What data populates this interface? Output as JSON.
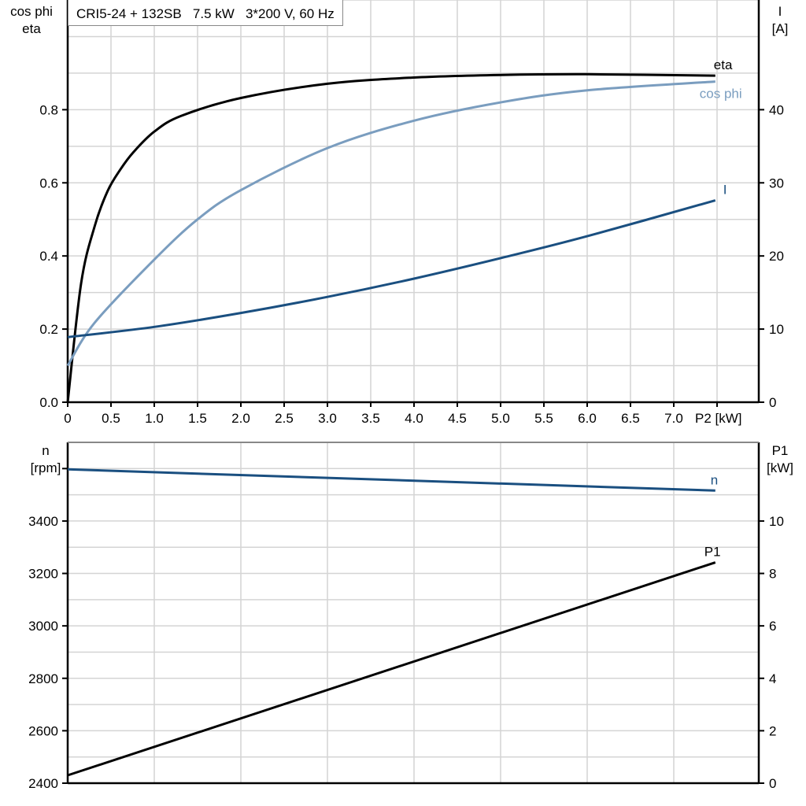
{
  "title": "CRI5-24 + 132SB   7.5 kW   3*200 V, 60 Hz",
  "chart_data": [
    {
      "type": "line",
      "xlabel": "P2 [kW]",
      "x_ticks": [
        "0",
        "0.5",
        "1.0",
        "1.5",
        "2.0",
        "2.5",
        "3.0",
        "3.5",
        "4.0",
        "4.5",
        "5.0",
        "5.5",
        "6.0",
        "6.5",
        "7.0"
      ],
      "xlim": [
        0,
        8
      ],
      "ylabel_left": [
        "cos phi",
        "eta"
      ],
      "ylim_left": [
        0,
        1.1
      ],
      "y_ticks_left": [
        "0.0",
        "0.2",
        "0.4",
        "0.6",
        "0.8"
      ],
      "ylabel_right": [
        "I",
        "[A]"
      ],
      "ylim_right": [
        0,
        55
      ],
      "y_ticks_right": [
        "0",
        "10",
        "20",
        "30",
        "40"
      ],
      "grid": true,
      "series": [
        {
          "name": "eta",
          "axis": "left",
          "color": "#000000",
          "x": [
            0,
            0.155,
            0.31,
            0.46,
            0.61,
            0.76,
            1.0,
            1.31,
            2.0,
            3.0,
            4.0,
            5.0,
            6.0,
            7.48
          ],
          "y": [
            0,
            0.325,
            0.48,
            0.577,
            0.637,
            0.684,
            0.74,
            0.783,
            0.832,
            0.871,
            0.888,
            0.895,
            0.897,
            0.893
          ]
        },
        {
          "name": "cos phi",
          "axis": "left",
          "color": "#7a9dbf",
          "x": [
            0,
            0.31,
            1.0,
            1.5,
            2.0,
            3.0,
            4.0,
            5.0,
            6.0,
            7.48
          ],
          "y": [
            0.1,
            0.217,
            0.39,
            0.5,
            0.58,
            0.695,
            0.77,
            0.82,
            0.853,
            0.877
          ]
        },
        {
          "name": "I",
          "axis": "right",
          "color": "#1a4f80",
          "x": [
            0,
            1,
            2,
            3,
            4,
            5,
            6,
            7.48
          ],
          "y": [
            8.9,
            10.3,
            12.2,
            14.4,
            16.9,
            19.7,
            22.7,
            27.6
          ]
        }
      ]
    },
    {
      "type": "line",
      "xlim": [
        0,
        8
      ],
      "ylabel_left": [
        "n",
        "[rpm]"
      ],
      "ylim_left": [
        2400,
        3700
      ],
      "y_ticks_left": [
        "2400",
        "2600",
        "2800",
        "3000",
        "3200",
        "3400"
      ],
      "ylabel_right": [
        "P1",
        "[kW]"
      ],
      "ylim_right": [
        0,
        13
      ],
      "y_ticks_right": [
        "0",
        "2",
        "4",
        "6",
        "8",
        "10"
      ],
      "grid": true,
      "series": [
        {
          "name": "n",
          "axis": "left",
          "color": "#1a4f80",
          "x": [
            0,
            7.48
          ],
          "y": [
            3597,
            3516
          ]
        },
        {
          "name": "P1",
          "axis": "right",
          "color": "#000000",
          "x": [
            0,
            7.48
          ],
          "y": [
            0.3,
            8.42
          ]
        }
      ]
    }
  ]
}
